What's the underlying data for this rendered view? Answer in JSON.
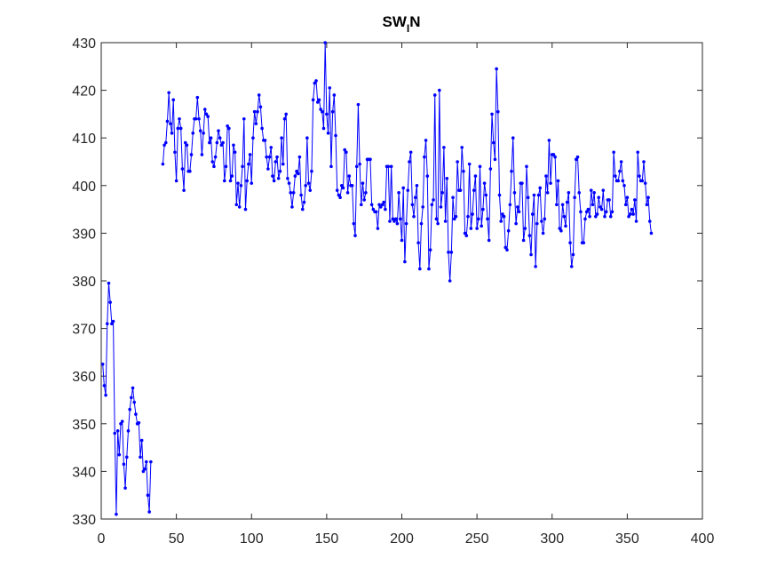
{
  "chart_data": {
    "type": "line",
    "title": [
      "SW",
      "I",
      "N"
    ],
    "x": [
      1,
      2,
      3,
      4,
      5,
      6,
      7,
      8,
      9,
      10,
      11,
      12,
      13,
      14,
      15,
      16,
      17,
      18,
      19,
      20,
      21,
      22,
      23,
      24,
      25,
      26,
      27,
      28,
      29,
      30,
      31,
      32,
      33,
      34,
      35,
      36,
      37,
      38,
      39,
      40,
      41,
      42,
      43,
      44,
      45,
      46,
      47,
      48,
      49,
      50,
      51,
      52,
      53,
      54,
      55,
      56,
      57,
      58,
      59,
      60,
      61,
      62,
      63,
      64,
      65,
      66,
      67,
      68,
      69,
      70,
      71,
      72,
      73,
      74,
      75,
      76,
      77,
      78,
      79,
      80,
      81,
      82,
      83,
      84,
      85,
      86,
      87,
      88,
      89,
      90,
      91,
      92,
      93,
      94,
      95,
      96,
      97,
      98,
      99,
      100,
      101,
      102,
      103,
      104,
      105,
      106,
      107,
      108,
      109,
      110,
      111,
      112,
      113,
      114,
      115,
      116,
      117,
      118,
      119,
      120,
      121,
      122,
      123,
      124,
      125,
      126,
      127,
      128,
      129,
      130,
      131,
      132,
      133,
      134,
      135,
      136,
      137,
      138,
      139,
      140,
      141,
      142,
      143,
      144,
      145,
      146,
      147,
      148,
      149,
      150,
      151,
      152,
      153,
      154,
      155,
      156,
      157,
      158,
      159,
      160,
      161,
      162,
      163,
      164,
      165,
      166,
      167,
      168,
      169,
      170,
      171,
      172,
      173,
      174,
      175,
      176,
      177,
      178,
      179,
      180,
      181,
      182,
      183,
      184,
      185,
      186,
      187,
      188,
      189,
      190,
      191,
      192,
      193,
      194,
      195,
      196,
      197,
      198,
      199,
      200,
      201,
      202,
      203,
      204,
      205,
      206,
      207,
      208,
      209,
      210,
      211,
      212,
      213,
      214,
      215,
      216,
      217,
      218,
      219,
      220,
      221,
      222,
      223,
      224,
      225,
      226,
      227,
      228,
      229,
      230,
      231,
      232,
      233,
      234,
      235,
      236,
      237,
      238,
      239,
      240,
      241,
      242,
      243,
      244,
      245,
      246,
      247,
      248,
      249,
      250,
      251,
      252,
      253,
      254,
      255,
      256,
      257,
      258,
      259,
      260,
      261,
      262,
      263,
      264,
      265,
      266,
      267,
      268,
      269,
      270,
      271,
      272,
      273,
      274,
      275,
      276,
      277,
      278,
      279,
      280,
      281,
      282,
      283,
      284,
      285,
      286,
      287,
      288,
      289,
      290,
      291,
      292,
      293,
      294,
      295,
      296,
      297,
      298,
      299,
      300,
      301,
      302,
      303,
      304,
      305,
      306,
      307,
      308,
      309,
      310,
      311,
      312,
      313,
      314,
      315,
      316,
      317,
      318,
      319,
      320,
      321,
      322,
      323,
      324,
      325,
      326,
      327,
      328,
      329,
      330,
      331,
      332,
      333,
      334,
      335,
      336,
      337,
      338,
      339,
      340,
      341,
      342,
      343,
      344,
      345,
      346,
      347,
      348,
      349,
      350,
      351,
      352,
      353,
      354,
      355,
      356,
      357,
      358,
      359,
      360,
      361,
      362,
      363,
      364,
      365,
      366
    ],
    "series": [
      {
        "color": "#0000ff",
        "values": [
          362.5,
          358,
          356,
          371,
          379.5,
          375.5,
          371,
          371.5,
          348,
          331,
          348.5,
          343.5,
          350,
          350.5,
          341.5,
          336.5,
          343,
          348.5,
          353,
          355.5,
          357.5,
          354.5,
          352,
          350,
          350.2,
          343,
          346.5,
          340,
          340.5,
          342,
          335,
          331.5,
          342,
          null,
          null,
          null,
          null,
          null,
          null,
          null,
          404.5,
          408.5,
          409,
          413.5,
          419.5,
          413,
          411,
          418,
          407,
          401,
          412,
          414,
          412,
          403.5,
          399,
          409,
          408.5,
          403,
          403,
          406.5,
          411,
          414,
          414,
          418.5,
          414,
          411.5,
          406.5,
          411,
          416,
          415,
          414.5,
          409,
          410,
          405,
          404,
          406,
          409,
          411.5,
          410,
          408.5,
          409,
          401,
          404,
          412.5,
          412,
          401,
          402,
          408.5,
          407,
          396,
          400.5,
          395.5,
          400,
          404,
          414,
          395,
          401,
          404.5,
          406.5,
          400.5,
          410,
          415.5,
          413,
          415.5,
          419,
          416.5,
          412,
          409.5,
          409.5,
          406,
          403.5,
          406,
          408,
          402,
          401,
          405,
          406,
          401.5,
          403,
          410,
          404.5,
          414,
          415,
          401.5,
          400.5,
          398.5,
          395.5,
          398.5,
          402,
          403,
          402.5,
          406,
          398,
          395,
          396.5,
          400,
          410,
          400.5,
          399,
          403,
          418,
          421.5,
          422,
          417.5,
          418,
          416,
          415.5,
          412,
          430,
          415,
          411,
          420.5,
          404,
          415.5,
          419,
          410.5,
          399,
          398,
          397.5,
          400,
          399.5,
          407.5,
          407,
          398.5,
          402,
          400,
          400,
          392,
          389.5,
          404,
          417,
          404.5,
          396,
          400.5,
          397,
          398.5,
          405.5,
          405.5,
          405.5,
          396,
          395,
          394.5,
          394.5,
          391,
          396,
          395.5,
          396,
          396.5,
          395,
          404,
          404,
          392.5,
          404,
          393,
          392.5,
          393,
          392,
          398.5,
          393,
          388.5,
          399.5,
          384,
          392,
          399,
          405,
          407,
          396,
          393.5,
          397.5,
          400,
          388,
          382.5,
          392,
          395.5,
          406,
          409.5,
          402,
          382.5,
          386.5,
          396,
          397,
          419,
          393,
          392,
          420,
          395.5,
          398.5,
          408,
          392.5,
          401.5,
          386,
          380,
          386,
          397.5,
          393,
          393.5,
          405,
          399,
          399,
          408,
          403,
          390,
          389.5,
          393.5,
          404.5,
          391,
          394,
          399,
          402,
          391,
          393,
          404,
          391.5,
          395,
          400.5,
          398,
          393,
          388.5,
          403.5,
          415,
          409,
          405.5,
          424.5,
          415.5,
          398,
          392.5,
          394,
          393.5,
          387,
          386.5,
          390.5,
          396,
          403,
          410,
          398.5,
          392,
          395.5,
          394.5,
          400.5,
          400.5,
          388.5,
          391,
          404,
          397.5,
          389.5,
          385.5,
          394,
          398,
          383,
          392,
          398,
          399.5,
          392.5,
          390,
          393,
          402,
          398.5,
          409.5,
          400.5,
          406.5,
          406.5,
          406,
          396,
          401,
          391,
          390.5,
          396,
          393.5,
          391.5,
          396.5,
          398.5,
          388,
          383,
          385.5,
          397.5,
          405.5,
          406,
          398.5,
          394.5,
          388,
          388,
          393,
          394.5,
          395,
          393.5,
          399,
          396,
          398.5,
          393.5,
          394,
          397.5,
          395.5,
          395,
          399,
          393.5,
          394.5,
          397,
          397,
          393.5,
          394.5,
          407,
          402,
          401,
          401,
          403,
          405,
          401,
          400,
          396,
          397.5,
          393.5,
          394,
          395,
          394,
          397,
          392.5,
          407,
          402,
          401,
          401,
          405,
          400.5,
          396,
          397.5,
          392.5,
          390
        ]
      }
    ],
    "xlim": [
      0,
      400
    ],
    "xticks": [
      0,
      50,
      100,
      150,
      200,
      250,
      300,
      350,
      400
    ],
    "ylim": [
      330,
      430
    ],
    "yticks": [
      330,
      340,
      350,
      360,
      370,
      380,
      390,
      400,
      410,
      420,
      430
    ],
    "grid": false
  }
}
